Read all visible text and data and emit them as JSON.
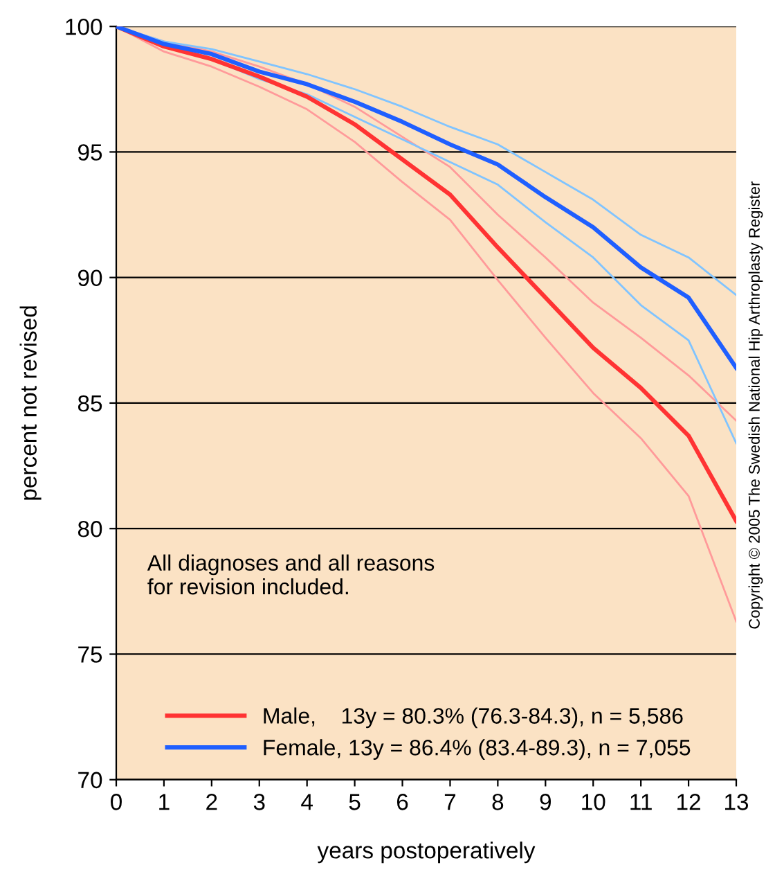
{
  "chart_data": {
    "type": "line",
    "xlabel": "years postoperatively",
    "ylabel": "percent not revised",
    "x": [
      0,
      1,
      2,
      3,
      4,
      5,
      6,
      7,
      8,
      9,
      10,
      11,
      12,
      13
    ],
    "xlim": [
      0,
      13
    ],
    "xticks": [
      0,
      1,
      2,
      3,
      4,
      5,
      6,
      7,
      8,
      9,
      10,
      11,
      12,
      13
    ],
    "ylim": [
      70,
      100
    ],
    "yticks": [
      70,
      75,
      80,
      85,
      90,
      95,
      100
    ],
    "grid": "y",
    "legend": "bottom left",
    "marker": "none",
    "line_style": "solid",
    "series": [
      {
        "color": "#ff9a9a",
        "values": [
          100,
          99.4,
          99.0,
          98.4,
          97.7,
          96.8,
          95.6,
          94.4,
          92.5,
          90.8,
          89.0,
          87.6,
          86.1,
          84.3
        ]
      },
      {
        "color": "#ff9a9a",
        "values": [
          100,
          99.0,
          98.4,
          97.6,
          96.7,
          95.4,
          93.8,
          92.3,
          89.9,
          87.6,
          85.4,
          83.6,
          81.3,
          76.3
        ]
      },
      {
        "color": "#80c4ff",
        "values": [
          100,
          99.4,
          99.1,
          98.6,
          98.1,
          97.5,
          96.8,
          96.0,
          95.3,
          94.2,
          93.1,
          91.7,
          90.8,
          89.3
        ]
      },
      {
        "color": "#80c4ff",
        "values": [
          100,
          99.2,
          98.7,
          97.9,
          97.3,
          96.4,
          95.5,
          94.6,
          93.7,
          92.2,
          90.8,
          88.9,
          87.5,
          83.4
        ]
      },
      {
        "name": "Male,    13y = 80.3% (76.3-84.3), n = 5,586",
        "color": "#ff3333",
        "values": [
          100,
          99.2,
          98.7,
          98.0,
          97.2,
          96.1,
          94.7,
          93.3,
          91.2,
          89.2,
          87.2,
          85.6,
          83.7,
          80.3
        ]
      },
      {
        "name": "Female, 13y = 86.4% (83.4-89.3), n = 7,055",
        "color": "#1f5fff",
        "values": [
          100,
          99.3,
          98.9,
          98.2,
          97.7,
          97.0,
          96.2,
          95.3,
          94.5,
          93.2,
          92.0,
          90.4,
          89.2,
          86.4
        ]
      }
    ],
    "annotations": [
      "All diagnoses and all reasons\nfor revision included.",
      "Copyright © 2005 The Swedish National Hip Arthroplasty Register"
    ]
  }
}
